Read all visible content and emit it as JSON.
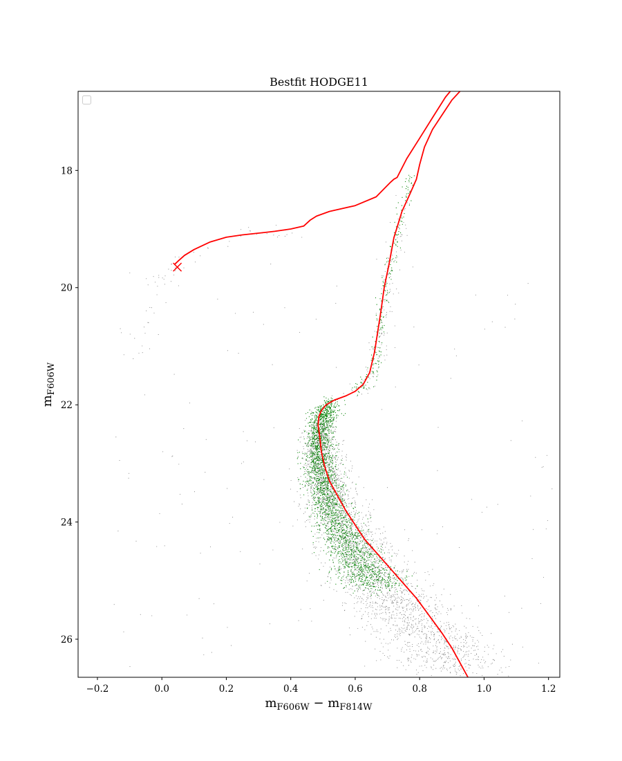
{
  "chart_data": {
    "type": "scatter",
    "title": "Bestfit HODGE11",
    "xlabel": {
      "main": "m",
      "sub1": "F606W",
      "mid": " − m",
      "sub2": "F814W"
    },
    "ylabel": {
      "main": "m",
      "sub": "F606W"
    },
    "xlim": [
      -0.26,
      1.235
    ],
    "ylim": [
      26.65,
      16.65
    ],
    "y_inverted": true,
    "xticks": [
      -0.2,
      0.0,
      0.2,
      0.4,
      0.6,
      0.8,
      1.0,
      1.2
    ],
    "xtick_labels": [
      "−0.2",
      "0.0",
      "0.2",
      "0.4",
      "0.6",
      "0.8",
      "1.0",
      "1.2"
    ],
    "yticks": [
      18,
      20,
      22,
      24,
      26
    ],
    "ytick_labels": [
      "18",
      "20",
      "22",
      "24",
      "26"
    ],
    "grid": false,
    "legend": {
      "placement": "top-left",
      "entries": []
    },
    "colors": {
      "all_stars": "#808080",
      "selected_stars": "#008000",
      "isochrone": "#ff0000"
    },
    "series": [
      {
        "kind": "points",
        "role": "all-stars",
        "color": "#808080",
        "ridge": [
          [
            0.495,
            22.3
          ],
          [
            0.49,
            22.6
          ],
          [
            0.495,
            22.9
          ],
          [
            0.505,
            23.2
          ],
          [
            0.52,
            23.5
          ],
          [
            0.54,
            23.8
          ],
          [
            0.565,
            24.1
          ],
          [
            0.595,
            24.4
          ],
          [
            0.63,
            24.7
          ],
          [
            0.665,
            25.0
          ],
          [
            0.71,
            25.3
          ],
          [
            0.76,
            25.6
          ],
          [
            0.815,
            25.9
          ],
          [
            0.87,
            26.2
          ],
          [
            0.92,
            26.5
          ]
        ],
        "spread": [
          0.02,
          0.025,
          0.03,
          0.035,
          0.04,
          0.045,
          0.05,
          0.055,
          0.06,
          0.065,
          0.07,
          0.075,
          0.08,
          0.085,
          0.09
        ],
        "upper_branch": [
          [
            0.59,
            21.75
          ],
          [
            0.65,
            21.6
          ],
          [
            0.67,
            21.2
          ],
          [
            0.68,
            20.8
          ],
          [
            0.69,
            20.4
          ],
          [
            0.7,
            20.0
          ],
          [
            0.72,
            19.5
          ],
          [
            0.74,
            19.0
          ],
          [
            0.76,
            18.5
          ]
        ],
        "horizontal_branch": [
          [
            -0.08,
            21.2
          ],
          [
            -0.04,
            20.5
          ],
          [
            0.0,
            19.9
          ],
          [
            0.05,
            19.6
          ],
          [
            0.15,
            19.3
          ],
          [
            0.3,
            19.1
          ],
          [
            0.45,
            19.0
          ]
        ],
        "field_range": {
          "x": [
            -0.15,
            1.22
          ],
          "y": [
            19.5,
            26.5
          ]
        }
      },
      {
        "kind": "points",
        "role": "selected-stars",
        "color": "#008000",
        "ridge": [
          [
            0.53,
            22.0
          ],
          [
            0.5,
            22.2
          ],
          [
            0.49,
            22.5
          ],
          [
            0.49,
            22.8
          ],
          [
            0.495,
            23.1
          ],
          [
            0.505,
            23.4
          ],
          [
            0.52,
            23.7
          ],
          [
            0.54,
            24.0
          ],
          [
            0.57,
            24.3
          ],
          [
            0.6,
            24.6
          ],
          [
            0.64,
            24.9
          ],
          [
            0.68,
            25.1
          ]
        ],
        "spread": [
          0.018,
          0.02,
          0.022,
          0.024,
          0.026,
          0.028,
          0.03,
          0.033,
          0.036,
          0.04,
          0.045,
          0.05
        ],
        "upper_branch": [
          [
            0.6,
            21.75
          ],
          [
            0.63,
            21.65
          ],
          [
            0.655,
            21.45
          ],
          [
            0.665,
            21.1
          ],
          [
            0.675,
            20.7
          ],
          [
            0.685,
            20.3
          ],
          [
            0.695,
            19.95
          ],
          [
            0.72,
            19.4
          ],
          [
            0.745,
            18.8
          ],
          [
            0.76,
            18.3
          ],
          [
            0.77,
            18.05
          ]
        ]
      },
      {
        "kind": "line",
        "role": "isochrone-rgb-ms",
        "color": "#ff0000",
        "x": [
          0.95,
          0.9,
          0.87,
          0.83,
          0.79,
          0.75,
          0.71,
          0.67,
          0.63,
          0.6,
          0.57,
          0.545,
          0.52,
          0.505,
          0.495,
          0.49,
          0.485,
          0.487,
          0.495,
          0.51,
          0.535,
          0.57,
          0.6,
          0.625,
          0.645,
          0.66,
          0.67,
          0.68,
          0.69,
          0.705,
          0.72,
          0.745,
          0.77,
          0.79,
          0.8,
          0.815,
          0.84,
          0.87,
          0.9,
          0.925
        ],
        "y": [
          26.65,
          26.15,
          25.9,
          25.6,
          25.3,
          25.05,
          24.8,
          24.55,
          24.3,
          24.05,
          23.8,
          23.55,
          23.3,
          23.05,
          22.8,
          22.55,
          22.35,
          22.2,
          22.1,
          22.0,
          21.92,
          21.85,
          21.77,
          21.65,
          21.45,
          21.1,
          20.75,
          20.4,
          20.0,
          19.6,
          19.15,
          18.7,
          18.4,
          18.15,
          17.9,
          17.6,
          17.3,
          17.05,
          16.8,
          16.65
        ]
      },
      {
        "kind": "line",
        "role": "isochrone-agb-hb",
        "color": "#ff0000",
        "x": [
          0.04,
          0.05,
          0.07,
          0.1,
          0.15,
          0.2,
          0.25,
          0.3,
          0.35,
          0.4,
          0.44,
          0.46,
          0.48,
          0.52,
          0.6,
          0.665,
          0.71,
          0.72,
          0.73,
          0.76,
          0.8,
          0.84,
          0.88,
          0.895
        ],
        "y": [
          19.6,
          19.55,
          19.45,
          19.35,
          19.22,
          19.14,
          19.1,
          19.07,
          19.04,
          19.0,
          18.95,
          18.85,
          18.78,
          18.7,
          18.6,
          18.45,
          18.2,
          18.15,
          18.12,
          17.8,
          17.45,
          17.1,
          16.75,
          16.65
        ]
      }
    ],
    "annotations": [
      {
        "marker": "x",
        "x": 0.048,
        "y": 19.65,
        "color": "#ff0000"
      }
    ]
  }
}
